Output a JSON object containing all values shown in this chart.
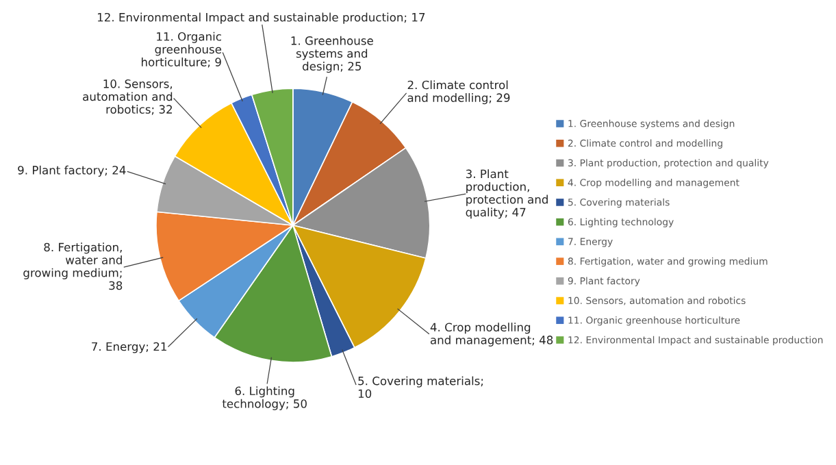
{
  "chart_data": {
    "type": "pie",
    "categories": [
      "1. Greenhouse systems and design",
      "2. Climate control and modelling",
      "3. Plant production, protection and quality",
      "4. Crop modelling and management",
      "5. Covering materials",
      "6. Lighting technology",
      "7. Energy",
      "8. Fertigation, water and growing medium",
      "9. Plant factory",
      "10. Sensors, automation and robotics",
      "11. Organic greenhouse horticulture",
      "12. Environmental Impact and sustainable production"
    ],
    "values": [
      25,
      29,
      47,
      48,
      10,
      50,
      21,
      38,
      24,
      32,
      9,
      17
    ],
    "colors": [
      "#4a7ebb",
      "#c5632b",
      "#8f8f8f",
      "#d4a20c",
      "#2f5597",
      "#5a9a3b",
      "#5b9bd5",
      "#ed7d31",
      "#a5a5a5",
      "#ffc000",
      "#4472c4",
      "#70ad47"
    ],
    "value_labels": [
      "1. Greenhouse\nsystems and\ndesign; 25",
      "2. Climate control\nand modelling; 29",
      "3. Plant\nproduction,\nprotection and\nquality; 47",
      "4. Crop modelling\nand management; 48",
      "5. Covering materials;\n10",
      "6. Lighting\ntechnology; 50",
      "7. Energy; 21",
      "8. Fertigation,\nwater and\ngrowing medium;\n38",
      "9. Plant factory; 24",
      "10. Sensors,\nautomation and\nrobotics; 32",
      "11. Organic\ngreenhouse\nhorticulture; 9",
      "12. Environmental Impact and sustainable production; 17"
    ],
    "legend": "right"
  }
}
